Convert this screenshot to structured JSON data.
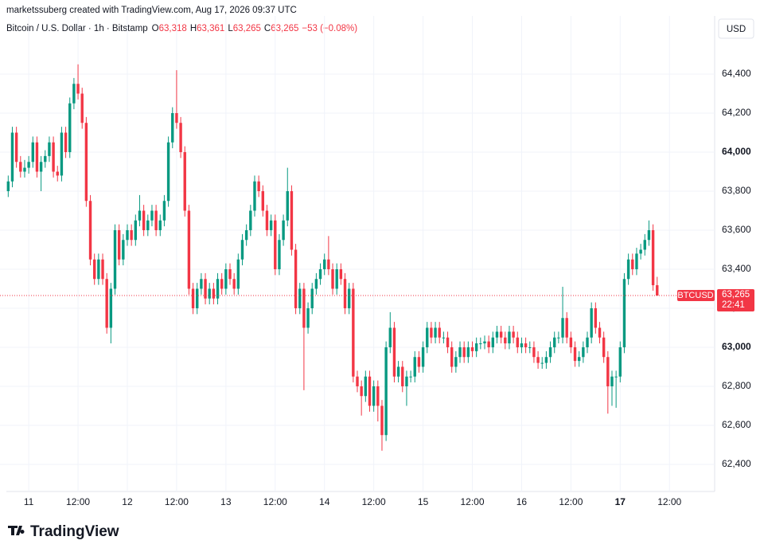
{
  "chart_data": {
    "type": "candlestick",
    "credit": "marketssuberg created with TradingView.com, Aug 17, 2026 09:37 UTC",
    "title": "Bitcoin / U.S. Dollar · 1h · Bitstamp",
    "ohlc_legend": [
      {
        "key": "O",
        "value": "63,318"
      },
      {
        "key": "H",
        "value": "63,361"
      },
      {
        "key": "L",
        "value": "63,265"
      },
      {
        "key": "C",
        "value": "63,265"
      }
    ],
    "change": "−53 (−0.08%)",
    "currency": "USD",
    "up_color": "#089981",
    "down_color": "#f23645",
    "grid": true,
    "last_price": {
      "name": "BTCUSD",
      "value": 63265,
      "label": "63,265",
      "countdown": "22:41"
    },
    "footer": "TradingView",
    "xlim": [
      -2,
      172
    ],
    "xticks": [
      {
        "value": 5,
        "label": "11"
      },
      {
        "value": 17,
        "label": "12:00"
      },
      {
        "value": 29,
        "label": "12"
      },
      {
        "value": 41,
        "label": "12:00"
      },
      {
        "value": 53,
        "label": "13"
      },
      {
        "value": 65,
        "label": "12:00"
      },
      {
        "value": 77,
        "label": "14"
      },
      {
        "value": 89,
        "label": "12:00"
      },
      {
        "value": 101,
        "label": "15"
      },
      {
        "value": 113,
        "label": "12:00"
      },
      {
        "value": 125,
        "label": "16"
      },
      {
        "value": 137,
        "label": "12:00"
      },
      {
        "value": 149,
        "label": "17"
      },
      {
        "value": 161,
        "label": "12:00"
      }
    ],
    "ylim": [
      62257,
      64698
    ],
    "yticks": [
      {
        "value": 62400,
        "label": "62,400"
      },
      {
        "value": 62600,
        "label": "62,600"
      },
      {
        "value": 62800,
        "label": "62,800"
      },
      {
        "value": 63000,
        "label": "63,000"
      },
      {
        "value": 63200,
        "label": "63,200"
      },
      {
        "value": 63400,
        "label": "63,400"
      },
      {
        "value": 63600,
        "label": "63,600"
      },
      {
        "value": 63800,
        "label": "63,800"
      },
      {
        "value": 64000,
        "label": "64,000"
      },
      {
        "value": 64200,
        "label": "64,200"
      },
      {
        "value": 64400,
        "label": "64,400"
      }
    ],
    "candles": [
      [
        63800,
        63880,
        63770,
        63850
      ],
      [
        63850,
        64130,
        63820,
        64100
      ],
      [
        64100,
        64130,
        63920,
        63950
      ],
      [
        63950,
        63980,
        63870,
        63900
      ],
      [
        63900,
        63960,
        63870,
        63920
      ],
      [
        63920,
        63980,
        63890,
        63950
      ],
      [
        63950,
        64080,
        63920,
        64050
      ],
      [
        64050,
        64080,
        63870,
        63900
      ],
      [
        63900,
        63980,
        63800,
        63950
      ],
      [
        63950,
        64010,
        63920,
        63980
      ],
      [
        63980,
        64080,
        63950,
        64050
      ],
      [
        64050,
        64080,
        63870,
        63900
      ],
      [
        63900,
        63930,
        63850,
        63880
      ],
      [
        63880,
        64130,
        63850,
        64100
      ],
      [
        64100,
        64130,
        63970,
        64000
      ],
      [
        64000,
        64280,
        63970,
        64250
      ],
      [
        64250,
        64380,
        64220,
        64350
      ],
      [
        64350,
        64450,
        64270,
        64300
      ],
      [
        64300,
        64330,
        64120,
        64150
      ],
      [
        64150,
        64180,
        63720,
        63750
      ],
      [
        63750,
        63780,
        63420,
        63450
      ],
      [
        63450,
        63480,
        63320,
        63350
      ],
      [
        63350,
        63480,
        63320,
        63450
      ],
      [
        63450,
        63480,
        63320,
        63350
      ],
      [
        63350,
        63380,
        63070,
        63100
      ],
      [
        63100,
        63330,
        63020,
        63300
      ],
      [
        63300,
        63630,
        63270,
        63600
      ],
      [
        63600,
        63630,
        63420,
        63450
      ],
      [
        63450,
        63580,
        63420,
        63550
      ],
      [
        63550,
        63630,
        63520,
        63600
      ],
      [
        63600,
        63630,
        63520,
        63550
      ],
      [
        63550,
        63680,
        63520,
        63650
      ],
      [
        63650,
        63780,
        63620,
        63700
      ],
      [
        63700,
        63730,
        63570,
        63600
      ],
      [
        63600,
        63680,
        63570,
        63650
      ],
      [
        63650,
        63730,
        63620,
        63700
      ],
      [
        63700,
        63730,
        63570,
        63600
      ],
      [
        63600,
        63680,
        63570,
        63650
      ],
      [
        63650,
        63780,
        63620,
        63750
      ],
      [
        63750,
        64080,
        63720,
        64050
      ],
      [
        64050,
        64230,
        64020,
        64200
      ],
      [
        64200,
        64420,
        64120,
        64150
      ],
      [
        64150,
        64180,
        63970,
        64000
      ],
      [
        64000,
        64030,
        63670,
        63700
      ],
      [
        63700,
        63730,
        63270,
        63300
      ],
      [
        63300,
        63330,
        63170,
        63200
      ],
      [
        63200,
        63330,
        63170,
        63300
      ],
      [
        63300,
        63380,
        63270,
        63350
      ],
      [
        63350,
        63380,
        63220,
        63250
      ],
      [
        63250,
        63330,
        63220,
        63300
      ],
      [
        63300,
        63330,
        63220,
        63250
      ],
      [
        63250,
        63380,
        63220,
        63350
      ],
      [
        63350,
        63380,
        63270,
        63300
      ],
      [
        63300,
        63430,
        63270,
        63400
      ],
      [
        63400,
        63430,
        63320,
        63350
      ],
      [
        63350,
        63380,
        63270,
        63300
      ],
      [
        63300,
        63480,
        63270,
        63450
      ],
      [
        63450,
        63580,
        63420,
        63550
      ],
      [
        63550,
        63630,
        63520,
        63600
      ],
      [
        63600,
        63730,
        63570,
        63700
      ],
      [
        63700,
        63880,
        63670,
        63850
      ],
      [
        63850,
        63880,
        63770,
        63800
      ],
      [
        63800,
        63830,
        63670,
        63700
      ],
      [
        63700,
        63730,
        63570,
        63600
      ],
      [
        63600,
        63680,
        63570,
        63650
      ],
      [
        63650,
        63680,
        63370,
        63400
      ],
      [
        63400,
        63580,
        63370,
        63550
      ],
      [
        63550,
        63680,
        63520,
        63650
      ],
      [
        63650,
        63920,
        63620,
        63800
      ],
      [
        63800,
        63830,
        63470,
        63500
      ],
      [
        63500,
        63530,
        63170,
        63200
      ],
      [
        63200,
        63330,
        63170,
        63300
      ],
      [
        63300,
        63330,
        62780,
        63100
      ],
      [
        63100,
        63230,
        63070,
        63200
      ],
      [
        63200,
        63330,
        63170,
        63300
      ],
      [
        63300,
        63380,
        63270,
        63350
      ],
      [
        63350,
        63430,
        63320,
        63400
      ],
      [
        63400,
        63480,
        63370,
        63450
      ],
      [
        63450,
        63570,
        63370,
        63400
      ],
      [
        63400,
        63430,
        63270,
        63300
      ],
      [
        63300,
        63430,
        63270,
        63400
      ],
      [
        63400,
        63430,
        63320,
        63350
      ],
      [
        63350,
        63380,
        63170,
        63200
      ],
      [
        63200,
        63330,
        63170,
        63300
      ],
      [
        63300,
        63330,
        62820,
        62850
      ],
      [
        62850,
        62880,
        62770,
        62800
      ],
      [
        62800,
        62830,
        62650,
        62750
      ],
      [
        62750,
        62880,
        62720,
        62850
      ],
      [
        62850,
        62880,
        62670,
        62700
      ],
      [
        62700,
        62830,
        62670,
        62800
      ],
      [
        62800,
        62830,
        62620,
        62700
      ],
      [
        62700,
        62730,
        62470,
        62550
      ],
      [
        62550,
        63030,
        62520,
        63000
      ],
      [
        63000,
        63180,
        62970,
        63100
      ],
      [
        63100,
        63130,
        62820,
        62850
      ],
      [
        62850,
        62930,
        62820,
        62900
      ],
      [
        62900,
        62930,
        62770,
        62800
      ],
      [
        62800,
        62880,
        62700,
        62850
      ],
      [
        62850,
        62880,
        62820,
        62850
      ],
      [
        62850,
        62980,
        62820,
        62950
      ],
      [
        62950,
        62980,
        62870,
        62900
      ],
      [
        62900,
        63030,
        62870,
        63000
      ],
      [
        63000,
        63130,
        62970,
        63100
      ],
      [
        63100,
        63130,
        63020,
        63050
      ],
      [
        63050,
        63130,
        63020,
        63100
      ],
      [
        63100,
        63130,
        63020,
        63050
      ],
      [
        63050,
        63080,
        63020,
        63050
      ],
      [
        63050,
        63080,
        62970,
        63000
      ],
      [
        63000,
        63030,
        62870,
        62900
      ],
      [
        62900,
        62980,
        62870,
        62950
      ],
      [
        62950,
        63030,
        62920,
        63000
      ],
      [
        63000,
        63030,
        62920,
        62950
      ],
      [
        62950,
        63030,
        62920,
        63000
      ],
      [
        63000,
        63030,
        62950,
        62980
      ],
      [
        62980,
        63050,
        62950,
        63020
      ],
      [
        63020,
        63050,
        62990,
        63020
      ],
      [
        63020,
        63060,
        62990,
        63030
      ],
      [
        63030,
        63060,
        62970,
        63000
      ],
      [
        63000,
        63080,
        62970,
        63050
      ],
      [
        63050,
        63110,
        63020,
        63080
      ],
      [
        63080,
        63110,
        63020,
        63050
      ],
      [
        63050,
        63080,
        62990,
        63020
      ],
      [
        63020,
        63110,
        62990,
        63080
      ],
      [
        63080,
        63110,
        63020,
        63050
      ],
      [
        63050,
        63080,
        62970,
        63000
      ],
      [
        63000,
        63050,
        62970,
        63020
      ],
      [
        63020,
        63050,
        62970,
        63000
      ],
      [
        63000,
        63030,
        62970,
        63000
      ],
      [
        63000,
        63030,
        62920,
        62950
      ],
      [
        62950,
        62980,
        62890,
        62920
      ],
      [
        62920,
        62950,
        62890,
        62920
      ],
      [
        62920,
        62980,
        62890,
        62950
      ],
      [
        62950,
        63030,
        62920,
        63000
      ],
      [
        63000,
        63080,
        62970,
        63050
      ],
      [
        63050,
        63080,
        63020,
        63050
      ],
      [
        63050,
        63310,
        63020,
        63150
      ],
      [
        63150,
        63180,
        63020,
        63050
      ],
      [
        63050,
        63080,
        62970,
        63000
      ],
      [
        63000,
        63030,
        62900,
        62930
      ],
      [
        62930,
        62980,
        62900,
        62950
      ],
      [
        62950,
        63030,
        62920,
        63000
      ],
      [
        63000,
        63080,
        62970,
        63050
      ],
      [
        63050,
        63230,
        63020,
        63200
      ],
      [
        63200,
        63230,
        63070,
        63100
      ],
      [
        63100,
        63130,
        63020,
        63050
      ],
      [
        63050,
        63080,
        62920,
        62950
      ],
      [
        62950,
        62980,
        62660,
        62800
      ],
      [
        62800,
        62880,
        62700,
        62850
      ],
      [
        62850,
        62880,
        62690,
        62850
      ],
      [
        62850,
        63030,
        62820,
        63000
      ],
      [
        63000,
        63380,
        62970,
        63350
      ],
      [
        63350,
        63480,
        63320,
        63450
      ],
      [
        63450,
        63480,
        63370,
        63400
      ],
      [
        63400,
        63510,
        63370,
        63480
      ],
      [
        63480,
        63530,
        63450,
        63500
      ],
      [
        63500,
        63580,
        63470,
        63550
      ],
      [
        63550,
        63650,
        63520,
        63600
      ],
      [
        63600,
        63630,
        63290,
        63318
      ],
      [
        63318,
        63361,
        63265,
        63265
      ]
    ]
  }
}
